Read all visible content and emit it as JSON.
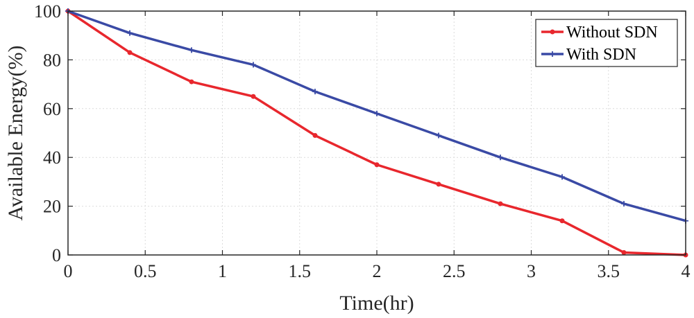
{
  "chart_data": {
    "type": "line",
    "title": "",
    "xlabel": "Time(hr)",
    "ylabel": "Available Energy(%)",
    "xlim": [
      0,
      4
    ],
    "ylim": [
      0,
      100
    ],
    "xticks": [
      0,
      0.5,
      1,
      1.5,
      2,
      2.5,
      3,
      3.5,
      4
    ],
    "xtick_labels": [
      "0",
      "0.5",
      "1",
      "1.5",
      "2",
      "2.5",
      "3",
      "3.5",
      "4"
    ],
    "yticks": [
      0,
      20,
      40,
      60,
      80,
      100
    ],
    "ytick_labels": [
      "0",
      "20",
      "40",
      "60",
      "80",
      "100"
    ],
    "grid": true,
    "legend_position": "top-right",
    "x": [
      0,
      0.4,
      0.8,
      1.2,
      1.6,
      2.0,
      2.4,
      2.8,
      3.2,
      3.6,
      4.0
    ],
    "series": [
      {
        "name": "Without SDN",
        "color": "#e8272d",
        "marker": "dot",
        "values": [
          100,
          83,
          71,
          65,
          49,
          37,
          29,
          21,
          14,
          1,
          0
        ]
      },
      {
        "name": "With SDN",
        "color": "#3a4aa5",
        "marker": "plus",
        "values": [
          100,
          91,
          84,
          78,
          67,
          58,
          49,
          40,
          32,
          21,
          14
        ]
      }
    ]
  }
}
